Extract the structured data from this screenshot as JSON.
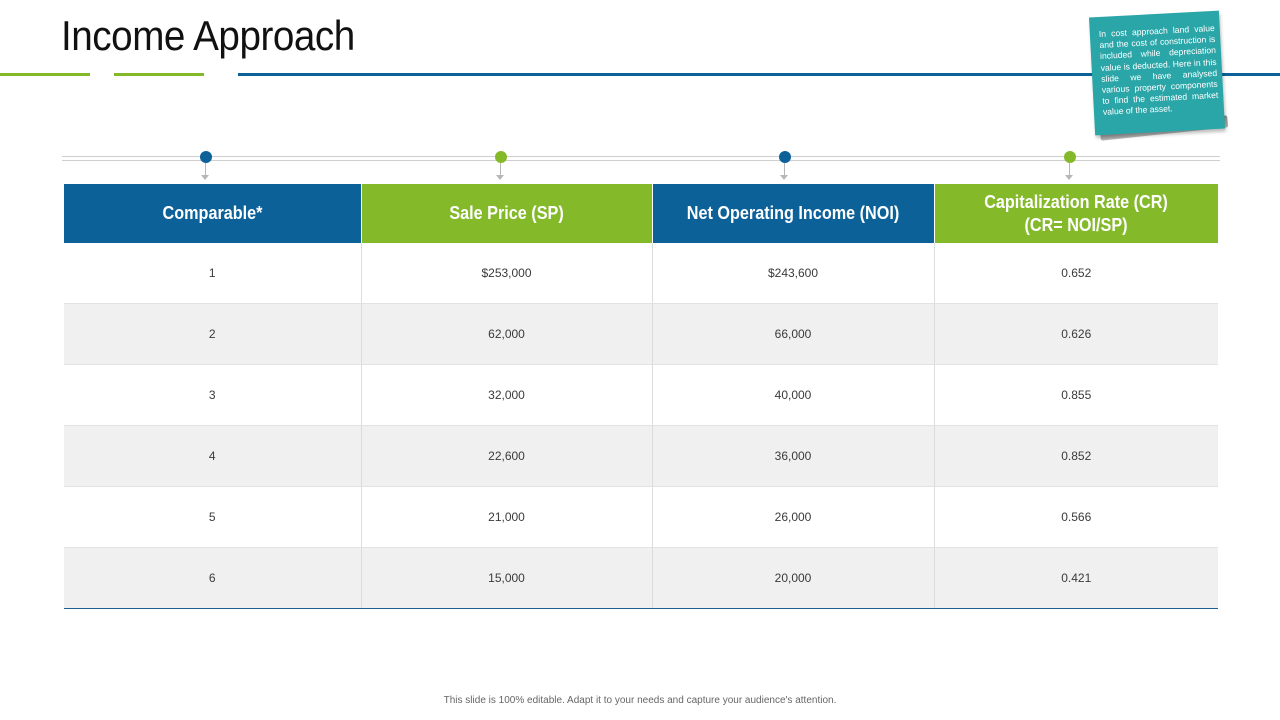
{
  "slide": {
    "title": "Income Approach",
    "footer": "This slide is 100% editable. Adapt it to your needs and capture your audience's attention."
  },
  "note": {
    "text": "In cost approach land value and the cost of construction is included while depreciation value is deducted. Here in this slide we have analysed various property components to find the estimated market value of the asset."
  },
  "colors": {
    "blue": "#0d6199",
    "green": "#84b92a",
    "teal": "#2aa6a8"
  },
  "table": {
    "headers": [
      {
        "line1": "Comparable*",
        "line2": ""
      },
      {
        "line1": "Sale Price (SP)",
        "line2": ""
      },
      {
        "line1": "Net Operating Income (NOI)",
        "line2": ""
      },
      {
        "line1": "Capitalization Rate (CR)",
        "line2": "(CR= NOI/SP)"
      }
    ],
    "rows": [
      [
        "1",
        "$253,000",
        "$243,600",
        "0.652"
      ],
      [
        "2",
        "62,000",
        "66,000",
        "0.626"
      ],
      [
        "3",
        "32,000",
        "40,000",
        "0.855"
      ],
      [
        "4",
        "22,600",
        "36,000",
        "0.852"
      ],
      [
        "5",
        "21,000",
        "26,000",
        "0.566"
      ],
      [
        "6",
        "15,000",
        "20,000",
        "0.421"
      ]
    ]
  }
}
